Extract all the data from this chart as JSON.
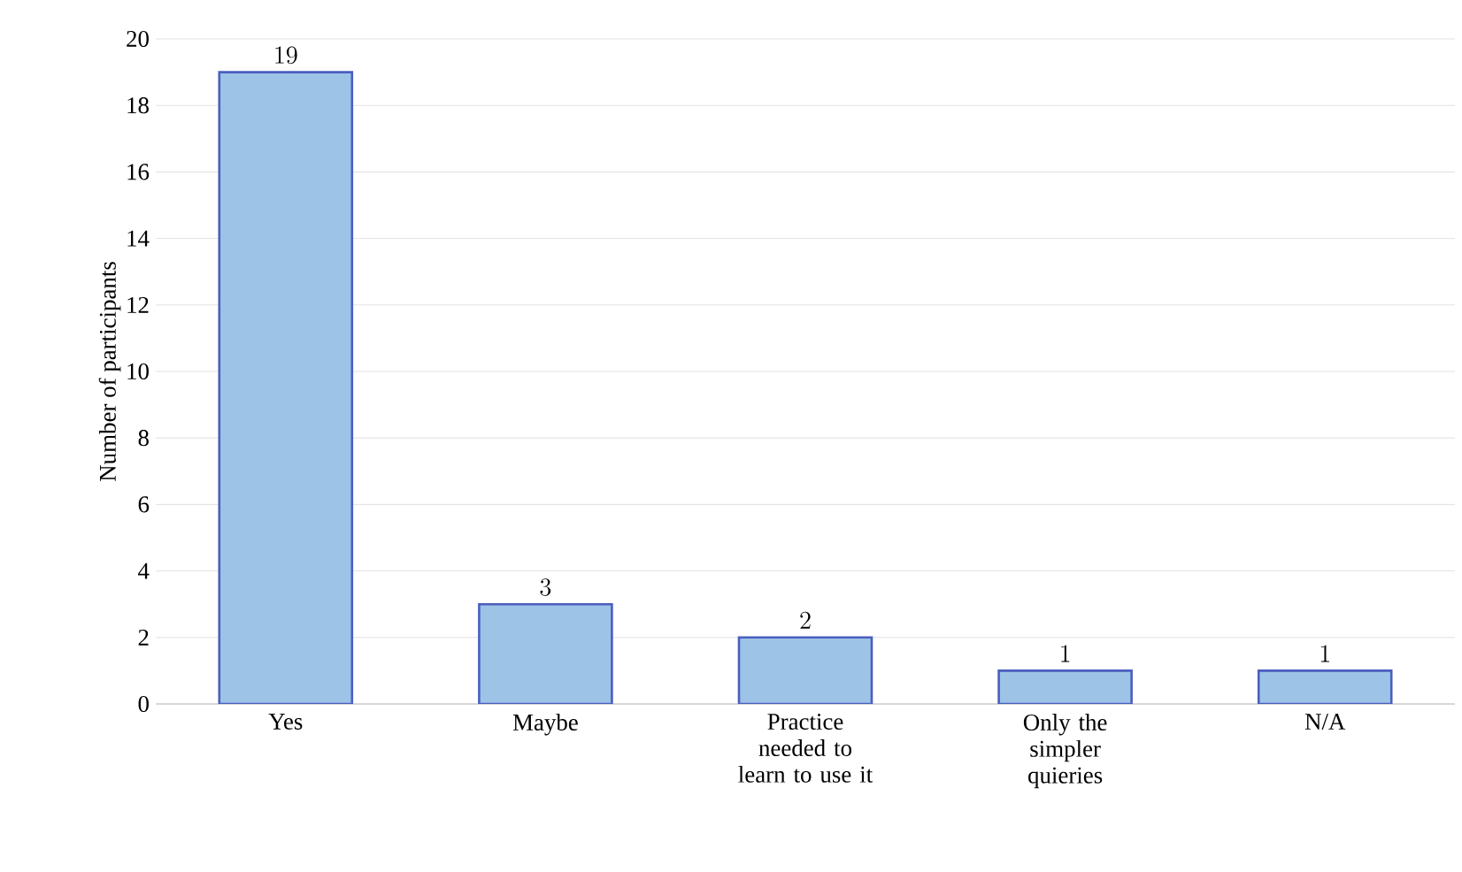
{
  "chart_data": {
    "type": "bar",
    "ylabel": "Number of participants",
    "categories": [
      "Yes",
      "Maybe",
      "Practice needed to learn to use it",
      "Only the simpler quieries",
      "N/A"
    ],
    "values": [
      19,
      3,
      2,
      1,
      1
    ],
    "color": "#9dc3e6",
    "ylim": [
      0,
      20
    ],
    "yticks": [
      0,
      2,
      4,
      6,
      8,
      10,
      12,
      14,
      16,
      18,
      20
    ],
    "grid": "y",
    "data_labels": true
  }
}
